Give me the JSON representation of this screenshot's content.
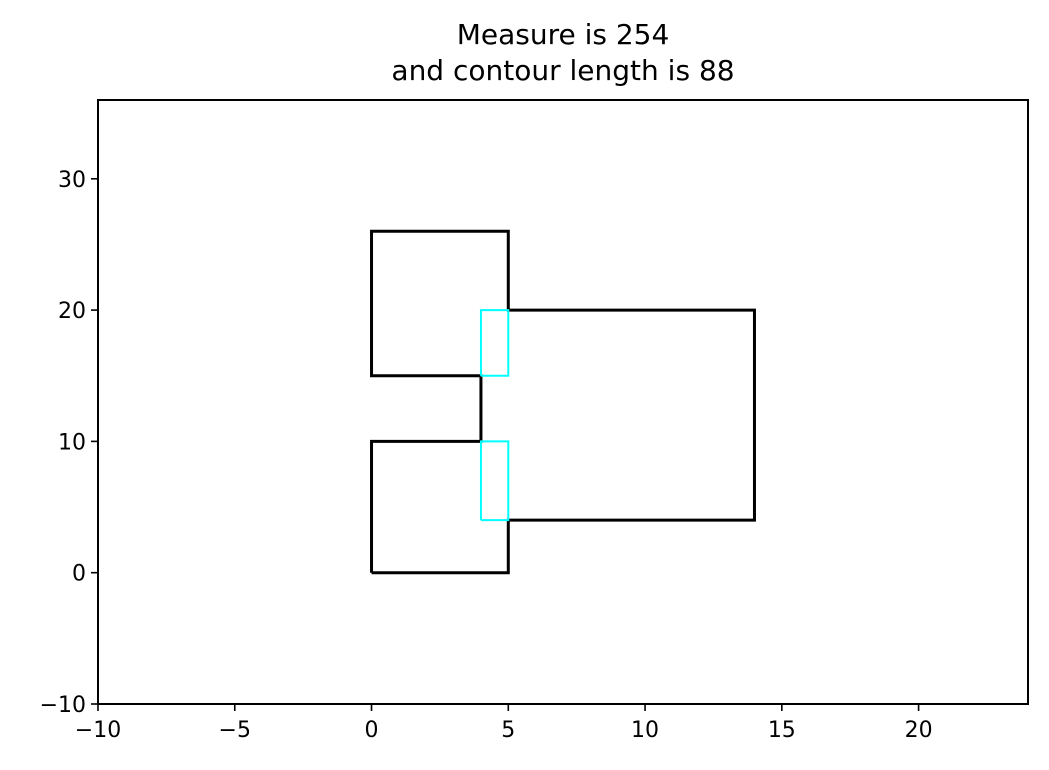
{
  "chart_data": {
    "type": "line",
    "title_lines": [
      "Measure is 254",
      "and contour length is 88"
    ],
    "xlabel": "",
    "ylabel": "",
    "xlim": [
      -10,
      24
    ],
    "ylim": [
      -10,
      36
    ],
    "x_ticks": [
      -10,
      -5,
      0,
      5,
      10,
      15,
      20
    ],
    "x_tick_labels": [
      "−10",
      "−5",
      "0",
      "5",
      "10",
      "15",
      "20"
    ],
    "y_ticks": [
      -10,
      0,
      10,
      20,
      30
    ],
    "y_tick_labels": [
      "−10",
      "0",
      "10",
      "20",
      "30"
    ],
    "grid": false,
    "series": [
      {
        "color": "#000000",
        "style": "solid",
        "points": [
          [
            0,
            0
          ],
          [
            5,
            0
          ],
          [
            5,
            4
          ],
          [
            14,
            4
          ],
          [
            14,
            20
          ],
          [
            5,
            20
          ],
          [
            5,
            26
          ],
          [
            0,
            26
          ],
          [
            0,
            15
          ],
          [
            4,
            15
          ],
          [
            4,
            10
          ],
          [
            0,
            10
          ],
          [
            0,
            0
          ]
        ]
      },
      {
        "color": "#00ffff",
        "style": "solid",
        "points": [
          [
            4,
            15
          ],
          [
            5,
            15
          ],
          [
            5,
            20
          ],
          [
            4,
            20
          ],
          [
            4,
            15
          ]
        ]
      },
      {
        "color": "#00ffff",
        "style": "solid",
        "points": [
          [
            4,
            4
          ],
          [
            5,
            4
          ],
          [
            5,
            10
          ],
          [
            4,
            10
          ],
          [
            4,
            4
          ]
        ]
      }
    ]
  }
}
